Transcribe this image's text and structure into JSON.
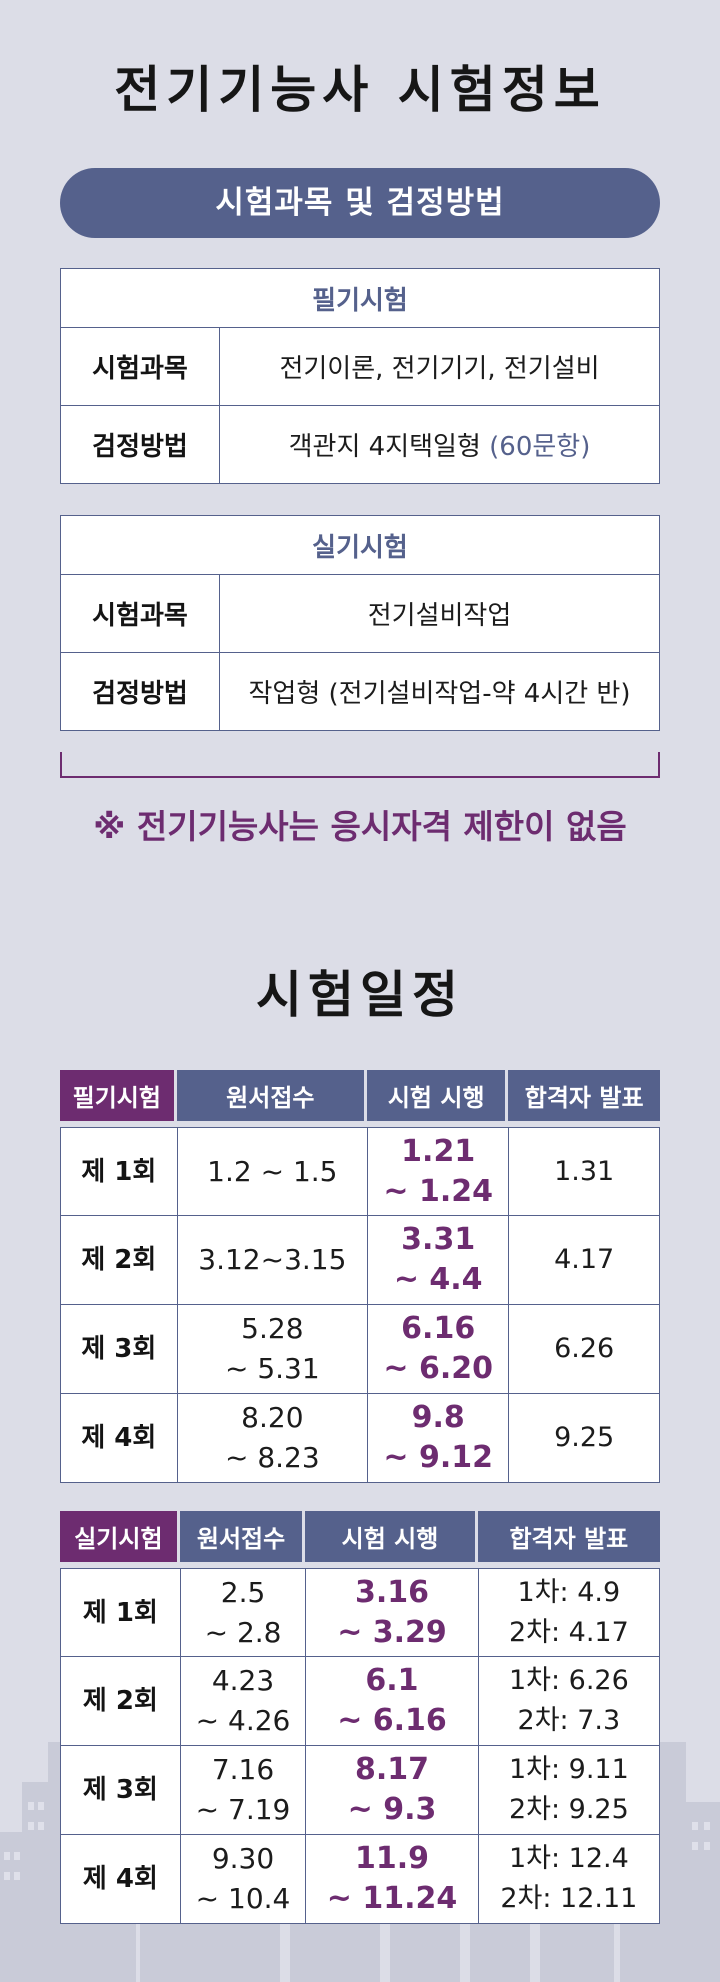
{
  "title": "전기기능사 시험정보",
  "subjects_section": {
    "label": "시험과목 및 검정방법",
    "written": {
      "heading": "필기시험",
      "subject_label": "시험과목",
      "subject_value": "전기이론, 전기기기, 전기설비",
      "method_label": "검정방법",
      "method_value": "객관지 4지택일형",
      "method_note": "(60문항)"
    },
    "practical": {
      "heading": "실기시험",
      "subject_label": "시험과목",
      "subject_value": "전기설비작업",
      "method_label": "검정방법",
      "method_value": "작업형 (전기설비작업-약 4시간 반)"
    },
    "notice": "※ 전기기능사는 응시자격 제한이 없음"
  },
  "schedule": {
    "title": "시험일정",
    "written": {
      "headers": [
        "필기시험",
        "원서접수",
        "시험 시행",
        "합격자 발표"
      ],
      "rows": [
        {
          "round": "제 1회",
          "apply": [
            "1.2 ~ 1.5"
          ],
          "exam": [
            "1.21",
            "~ 1.24"
          ],
          "result": [
            "1.31"
          ]
        },
        {
          "round": "제 2회",
          "apply": [
            "3.12~3.15"
          ],
          "exam": [
            "3.31",
            "~ 4.4"
          ],
          "result": [
            "4.17"
          ]
        },
        {
          "round": "제 3회",
          "apply": [
            "5.28",
            "~ 5.31"
          ],
          "exam": [
            "6.16",
            "~ 6.20"
          ],
          "result": [
            "6.26"
          ]
        },
        {
          "round": "제 4회",
          "apply": [
            "8.20",
            "~ 8.23"
          ],
          "exam": [
            "9.8",
            "~ 9.12"
          ],
          "result": [
            "9.25"
          ]
        }
      ]
    },
    "practical": {
      "headers": [
        "실기시험",
        "원서접수",
        "시험 시행",
        "합격자 발표"
      ],
      "rows": [
        {
          "round": "제 1회",
          "apply": [
            "2.5",
            "~ 2.8"
          ],
          "exam": [
            "3.16",
            "~ 3.29"
          ],
          "result": [
            "1차: 4.9",
            "2차: 4.17"
          ]
        },
        {
          "round": "제 2회",
          "apply": [
            "4.23",
            "~ 4.26"
          ],
          "exam": [
            "6.1",
            "~ 6.16"
          ],
          "result": [
            "1차: 6.26",
            "2차: 7.3"
          ]
        },
        {
          "round": "제 3회",
          "apply": [
            "7.16",
            "~ 7.19"
          ],
          "exam": [
            "8.17",
            "~ 9.3"
          ],
          "result": [
            "1차: 9.11",
            "2차: 9.25"
          ]
        },
        {
          "round": "제 4회",
          "apply": [
            "9.30",
            "~ 10.4"
          ],
          "exam": [
            "11.9",
            "~ 11.24"
          ],
          "result": [
            "1차: 12.4",
            "2차: 12.11"
          ]
        }
      ]
    }
  },
  "colors": {
    "background": "#dcdde7",
    "navy": "#55618c",
    "purple": "#6d2c70"
  }
}
